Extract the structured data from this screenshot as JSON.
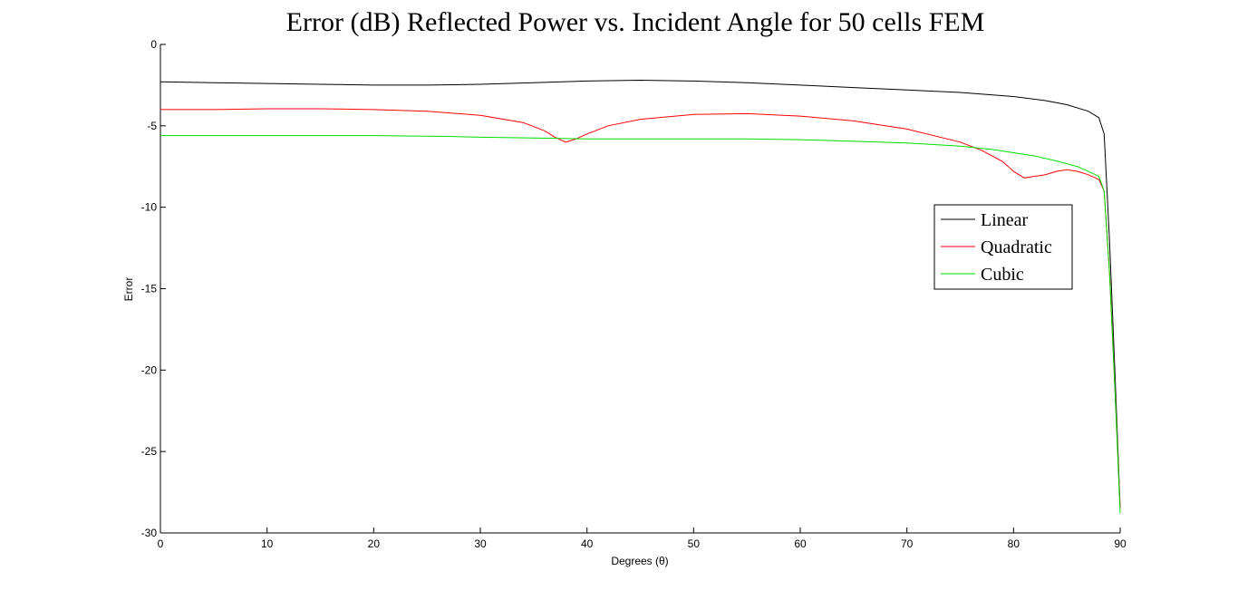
{
  "chart_data": {
    "type": "line",
    "title": "Error (dB) Reflected Power vs. Incident Angle for 50 cells FEM",
    "xlabel": "Degrees (θ)",
    "ylabel": "Error",
    "xlim": [
      0,
      90
    ],
    "ylim": [
      -30,
      0
    ],
    "xticks": [
      0,
      10,
      20,
      30,
      40,
      50,
      60,
      70,
      80,
      90
    ],
    "yticks": [
      0,
      -5,
      -10,
      -15,
      -20,
      -25,
      -30
    ],
    "grid": false,
    "legend_position": "top-right",
    "series": [
      {
        "name": "Linear",
        "color": "#000000",
        "points": [
          [
            0,
            -2.3
          ],
          [
            5,
            -2.35
          ],
          [
            10,
            -2.4
          ],
          [
            15,
            -2.45
          ],
          [
            20,
            -2.5
          ],
          [
            25,
            -2.5
          ],
          [
            30,
            -2.45
          ],
          [
            35,
            -2.35
          ],
          [
            40,
            -2.25
          ],
          [
            45,
            -2.2
          ],
          [
            50,
            -2.25
          ],
          [
            55,
            -2.35
          ],
          [
            60,
            -2.5
          ],
          [
            65,
            -2.65
          ],
          [
            70,
            -2.8
          ],
          [
            75,
            -2.95
          ],
          [
            80,
            -3.2
          ],
          [
            83,
            -3.45
          ],
          [
            85,
            -3.7
          ],
          [
            87,
            -4.1
          ],
          [
            88,
            -4.5
          ],
          [
            88.5,
            -5.5
          ],
          [
            89,
            -12
          ],
          [
            89.5,
            -20
          ],
          [
            90,
            -28.5
          ]
        ]
      },
      {
        "name": "Quadratic",
        "color": "#ff0000",
        "points": [
          [
            0,
            -4.0
          ],
          [
            5,
            -4.0
          ],
          [
            10,
            -3.95
          ],
          [
            15,
            -3.95
          ],
          [
            20,
            -4.0
          ],
          [
            25,
            -4.1
          ],
          [
            30,
            -4.35
          ],
          [
            34,
            -4.8
          ],
          [
            36,
            -5.3
          ],
          [
            37,
            -5.7
          ],
          [
            38,
            -6.0
          ],
          [
            39,
            -5.8
          ],
          [
            40,
            -5.5
          ],
          [
            42,
            -5.0
          ],
          [
            45,
            -4.6
          ],
          [
            50,
            -4.3
          ],
          [
            55,
            -4.25
          ],
          [
            60,
            -4.4
          ],
          [
            65,
            -4.7
          ],
          [
            70,
            -5.2
          ],
          [
            75,
            -6.0
          ],
          [
            77,
            -6.5
          ],
          [
            79,
            -7.2
          ],
          [
            80,
            -7.8
          ],
          [
            81,
            -8.2
          ],
          [
            82,
            -8.1
          ],
          [
            83,
            -8.0
          ],
          [
            84,
            -7.8
          ],
          [
            85,
            -7.7
          ],
          [
            86,
            -7.8
          ],
          [
            87,
            -8.0
          ],
          [
            88,
            -8.3
          ],
          [
            88.5,
            -9.0
          ],
          [
            89,
            -14
          ],
          [
            89.5,
            -21
          ],
          [
            90,
            -28.5
          ]
        ]
      },
      {
        "name": "Cubic",
        "color": "#00dd00",
        "points": [
          [
            0,
            -5.6
          ],
          [
            10,
            -5.6
          ],
          [
            20,
            -5.6
          ],
          [
            27,
            -5.65
          ],
          [
            30,
            -5.7
          ],
          [
            35,
            -5.75
          ],
          [
            40,
            -5.8
          ],
          [
            50,
            -5.8
          ],
          [
            55,
            -5.8
          ],
          [
            60,
            -5.85
          ],
          [
            65,
            -5.95
          ],
          [
            70,
            -6.05
          ],
          [
            75,
            -6.25
          ],
          [
            78,
            -6.45
          ],
          [
            80,
            -6.65
          ],
          [
            82,
            -6.85
          ],
          [
            84,
            -7.15
          ],
          [
            86,
            -7.5
          ],
          [
            87,
            -7.8
          ],
          [
            88,
            -8.1
          ],
          [
            88.5,
            -9.0
          ],
          [
            89,
            -14
          ],
          [
            89.5,
            -21
          ],
          [
            90,
            -28.8
          ]
        ]
      }
    ]
  }
}
